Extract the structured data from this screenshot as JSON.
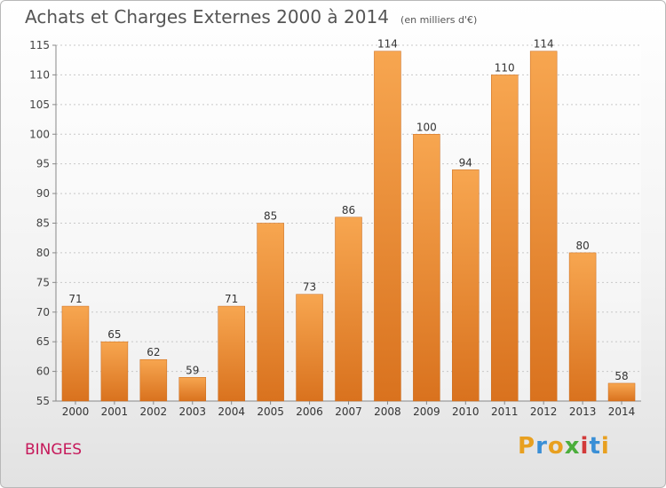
{
  "header": {
    "title": "Achats et Charges Externes 2000 à 2014",
    "unit": "(en milliers d'€)"
  },
  "footer": {
    "commune": "BINGES",
    "logo_letters": [
      "P",
      "r",
      "o",
      "x",
      "i",
      "t",
      "i"
    ],
    "logo_colors": [
      "#e8a020",
      "#3a8fd6",
      "#e8a020",
      "#4cae3c",
      "#d23a3a",
      "#3a8fd6",
      "#e8a020"
    ]
  },
  "chart_data": {
    "type": "bar",
    "title": "Achats et Charges Externes 2000 à 2014",
    "categories": [
      "2000",
      "2001",
      "2002",
      "2003",
      "2004",
      "2005",
      "2006",
      "2007",
      "2008",
      "2009",
      "2010",
      "2011",
      "2012",
      "2013",
      "2014"
    ],
    "values": [
      71,
      65,
      62,
      59,
      71,
      85,
      73,
      86,
      114,
      100,
      94,
      110,
      114,
      80,
      58
    ],
    "ylim": [
      55,
      115
    ],
    "yticks": [
      55,
      60,
      65,
      70,
      75,
      80,
      85,
      90,
      95,
      100,
      105,
      110,
      115
    ],
    "grid": true,
    "bar_color": "#f0922e",
    "xlabel": "",
    "ylabel": ""
  }
}
